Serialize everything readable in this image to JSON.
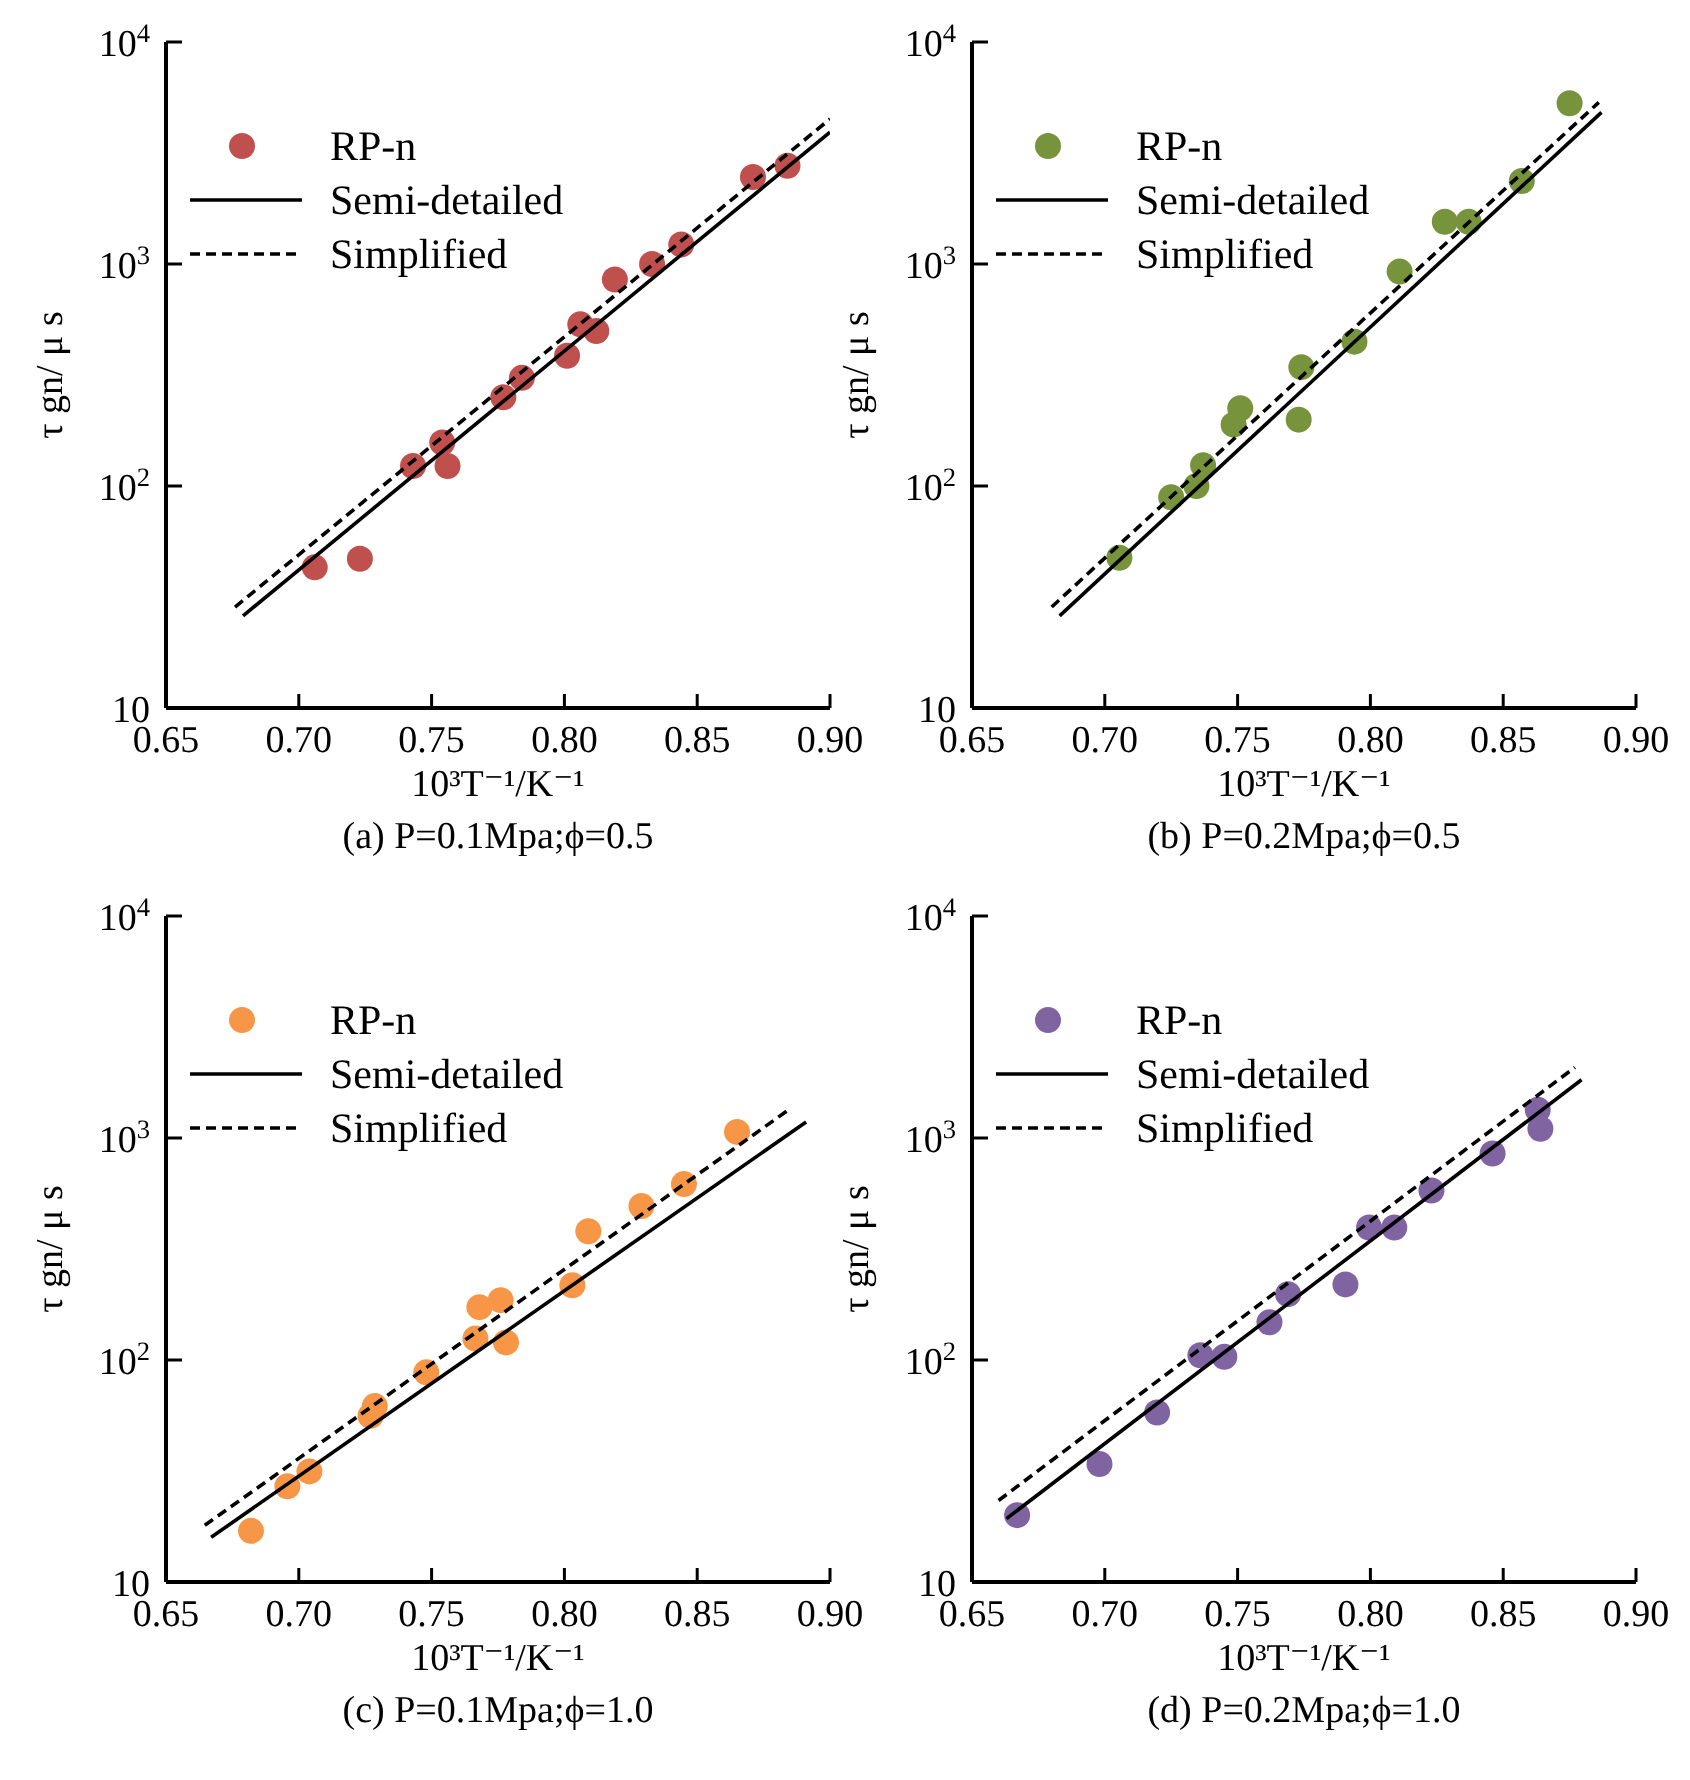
{
  "chart_data": [
    {
      "type": "scatter",
      "xlabel": "10³T⁻¹/K⁻¹",
      "ylabel": "τ gn/ μ s",
      "annotations": [
        "(a) P=0.1Mpa;ϕ=0.5"
      ],
      "log": "y",
      "xlim": [
        0.65,
        0.9
      ],
      "xticks": [
        0.65,
        {
          "value": 0.7,
          "label": "0.70"
        },
        0.75,
        {
          "value": 0.8,
          "label": "0.80"
        },
        0.85,
        {
          "value": 0.9,
          "label": "0.90"
        }
      ],
      "ylim": [
        10,
        10000
      ],
      "yticks": [
        {
          "value": 10,
          "label": "10"
        },
        {
          "value": 100,
          "label": "10$^{2}$"
        },
        {
          "value": 1000,
          "label": "10$^{3}$"
        },
        {
          "value": 10000,
          "label": "10$^{4}$"
        }
      ],
      "grid": false,
      "legend": "top left",
      "series": [
        {
          "name": "RP-n",
          "type": "scatter",
          "marker": "circle",
          "color": "#c0504d",
          "x": [
            0.706,
            0.723,
            0.743,
            0.754,
            0.756,
            0.777,
            0.784,
            0.801,
            0.806,
            0.812,
            0.819,
            0.833,
            0.844,
            0.871,
            0.884
          ],
          "values": [
            43,
            47,
            123,
            157,
            123,
            251,
            307,
            386,
            535,
            499,
            851,
            1000,
            1225,
            2465,
            2770
          ]
        },
        {
          "name": "Semi-detailed",
          "type": "line",
          "line_style": "solid",
          "color": "#000000",
          "x": [
            0.679,
            0.9
          ],
          "values": [
            26,
            3925
          ]
        },
        {
          "name": "Simplified",
          "type": "line",
          "line_style": "dashed",
          "color": "#000000",
          "x": [
            0.676,
            0.9
          ],
          "values": [
            28.5,
            4500
          ]
        }
      ]
    },
    {
      "type": "scatter",
      "xlabel": "10³T⁻¹/K⁻¹",
      "ylabel": "τ gn/ μ s",
      "annotations": [
        "(b) P=0.2Mpa;ϕ=0.5"
      ],
      "log": "y",
      "xlim": [
        0.65,
        0.9
      ],
      "xticks": [
        0.65,
        {
          "value": 0.7,
          "label": "0.70"
        },
        0.75,
        {
          "value": 0.8,
          "label": "0.80"
        },
        0.85,
        {
          "value": 0.9,
          "label": "0.90"
        }
      ],
      "ylim": [
        10,
        10000
      ],
      "yticks": [
        {
          "value": 10,
          "label": "10"
        },
        {
          "value": 100,
          "label": "10$^{2}$"
        },
        {
          "value": 1000,
          "label": "10$^{3}$"
        },
        {
          "value": 10000,
          "label": "10$^{4}$"
        }
      ],
      "grid": false,
      "legend": "top left",
      "series": [
        {
          "name": "RP-n",
          "type": "scatter",
          "marker": "circle",
          "color": "#77933c",
          "x": [
            0.7055,
            0.725,
            0.7345,
            0.737,
            0.7485,
            0.751,
            0.773,
            0.774,
            0.794,
            0.811,
            0.828,
            0.837,
            0.857,
            0.875
          ],
          "values": [
            47.5,
            89,
            100,
            124,
            189,
            224,
            199,
            343,
            447,
            924,
            1550,
            1550,
            2365,
            5300
          ]
        },
        {
          "name": "Semi-detailed",
          "type": "line",
          "line_style": "solid",
          "color": "#000000",
          "x": [
            0.683,
            0.887
          ],
          "values": [
            26,
            4820
          ]
        },
        {
          "name": "Simplified",
          "type": "line",
          "line_style": "dashed",
          "color": "#000000",
          "x": [
            0.68,
            0.886
          ],
          "values": [
            28.5,
            5350
          ]
        }
      ]
    },
    {
      "type": "scatter",
      "xlabel": "10³T⁻¹/K⁻¹",
      "ylabel": "τ gn/ μ s",
      "annotations": [
        "(c) P=0.1Mpa;ϕ=1.0"
      ],
      "log": "y",
      "xlim": [
        0.65,
        0.9
      ],
      "xticks": [
        0.65,
        {
          "value": 0.7,
          "label": "0.70"
        },
        0.75,
        {
          "value": 0.8,
          "label": "0.80"
        },
        0.85,
        {
          "value": 0.9,
          "label": "0.90"
        }
      ],
      "ylim": [
        10,
        10000
      ],
      "yticks": [
        {
          "value": 10,
          "label": "10"
        },
        {
          "value": 100,
          "label": "10$^{2}$"
        },
        {
          "value": 1000,
          "label": "10$^{3}$"
        },
        {
          "value": 10000,
          "label": "10$^{4}$"
        }
      ],
      "grid": false,
      "legend": "top left",
      "series": [
        {
          "name": "RP-n",
          "type": "scatter",
          "marker": "circle",
          "color": "#f79646",
          "x": [
            0.682,
            0.6957,
            0.704,
            0.727,
            0.7286,
            0.748,
            0.7665,
            0.768,
            0.776,
            0.778,
            0.803,
            0.809,
            0.829,
            0.845,
            0.865
          ],
          "values": [
            17,
            27,
            31.5,
            56,
            62,
            88,
            125,
            173,
            186,
            120,
            217,
            380,
            494,
            620,
            1065
          ]
        },
        {
          "name": "Semi-detailed",
          "type": "line",
          "line_style": "solid",
          "color": "#000000",
          "x": [
            0.667,
            0.891
          ],
          "values": [
            15.9,
            1180
          ]
        },
        {
          "name": "Simplified",
          "type": "line",
          "line_style": "dashed",
          "color": "#000000",
          "x": [
            0.6646,
            0.885
          ],
          "values": [
            18,
            1355
          ]
        }
      ]
    },
    {
      "type": "scatter",
      "xlabel": "10³T⁻¹/K⁻¹",
      "ylabel": "τ gn/ μ s",
      "annotations": [
        "(d) P=0.2Mpa;ϕ=1.0"
      ],
      "log": "y",
      "xlim": [
        0.65,
        0.9
      ],
      "xticks": [
        0.65,
        {
          "value": 0.7,
          "label": "0.70"
        },
        0.75,
        {
          "value": 0.8,
          "label": "0.80"
        },
        0.85,
        {
          "value": 0.9,
          "label": "0.90"
        }
      ],
      "ylim": [
        10,
        10000
      ],
      "yticks": [
        {
          "value": 10,
          "label": "10"
        },
        {
          "value": 100,
          "label": "10$^{2}$"
        },
        {
          "value": 1000,
          "label": "10$^{3}$"
        },
        {
          "value": 10000,
          "label": "10$^{4}$"
        }
      ],
      "grid": false,
      "legend": "top left",
      "series": [
        {
          "name": "RP-n",
          "type": "scatter",
          "marker": "circle",
          "color": "#8064a2",
          "x": [
            0.667,
            0.698,
            0.7197,
            0.736,
            0.745,
            0.762,
            0.769,
            0.7906,
            0.7995,
            0.809,
            0.823,
            0.846,
            0.863,
            0.864
          ],
          "values": [
            20,
            34,
            58,
            105,
            103.5,
            148,
            198,
            219,
            395,
            395,
            580,
            851,
            1340,
            1100
          ]
        },
        {
          "name": "Semi-detailed",
          "type": "line",
          "line_style": "solid",
          "color": "#000000",
          "x": [
            0.663,
            0.8795
          ],
          "values": [
            19.3,
            1830
          ]
        },
        {
          "name": "Simplified",
          "type": "line",
          "line_style": "dashed",
          "color": "#000000",
          "x": [
            0.66,
            0.877
          ],
          "values": [
            23.3,
            2080
          ]
        }
      ]
    }
  ]
}
